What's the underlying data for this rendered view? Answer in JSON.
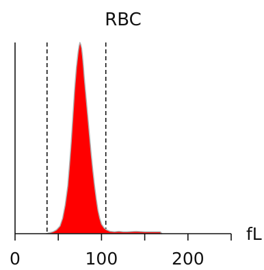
{
  "chart_data": {
    "type": "area",
    "title": "RBC",
    "xlabel": "",
    "ylabel": "",
    "x_unit": "fL",
    "xlim": [
      0,
      250
    ],
    "ylim": [
      0,
      100
    ],
    "x_ticks": [
      0,
      50,
      100,
      150,
      200,
      250
    ],
    "x_tick_labels": [
      "0",
      "",
      "100",
      "",
      "200",
      ""
    ],
    "grid": false,
    "legend": "none",
    "fill_color": "#ff0000",
    "edge_color": "#b0b0b0",
    "threshold_lines": [
      37,
      105
    ],
    "series": [
      {
        "x": [
          36,
          40,
          44,
          48,
          52,
          55,
          58,
          61,
          63,
          65,
          67,
          69,
          71,
          73,
          74,
          75,
          76,
          77,
          78,
          79,
          80,
          82,
          84,
          86,
          88,
          90,
          92,
          94,
          96,
          98,
          100,
          103,
          106,
          110,
          115,
          120,
          125,
          130,
          140,
          150,
          160,
          168,
          170
        ],
        "values": [
          0,
          0.5,
          1,
          2,
          4,
          8,
          15,
          25,
          36,
          48,
          62,
          76,
          87,
          95,
          98,
          100,
          99,
          97,
          93,
          88,
          82,
          72,
          62,
          52,
          42,
          33,
          25,
          18,
          12,
          8,
          5,
          3,
          2,
          1.2,
          1,
          1.2,
          1,
          1,
          1.2,
          1,
          1,
          1,
          0
        ]
      }
    ]
  }
}
